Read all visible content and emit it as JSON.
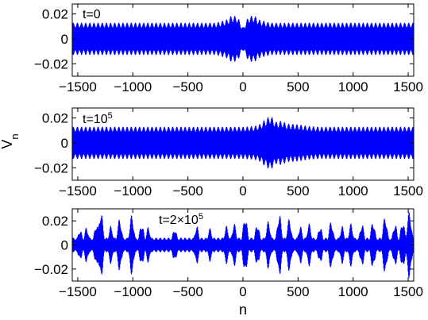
{
  "chart_data": [
    {
      "type": "line",
      "annotation": "t=0",
      "annotation_sup": "",
      "xlim": [
        -1550,
        1550
      ],
      "ylim": [
        -0.03,
        0.028
      ],
      "xticks": [
        "-1500",
        "-1000",
        "-500",
        "0",
        "500",
        "1000",
        "1500"
      ],
      "xtick_values": [
        -1500,
        -1000,
        -500,
        0,
        500,
        1000,
        1500
      ],
      "yticks": [
        "0.02",
        "0",
        "-0.02"
      ],
      "ytick_values": [
        0.02,
        0,
        -0.02
      ],
      "series": [
        {
          "color": "#0000ff",
          "x": [
            -1550,
            -1500,
            -1000,
            -500,
            -250,
            -150,
            -100,
            -50,
            0,
            50,
            100,
            150,
            250,
            500,
            1000,
            1500,
            1550
          ],
          "envelope": [
            0.013,
            0.013,
            0.013,
            0.013,
            0.013,
            0.0155,
            0.019,
            0.018,
            0.009,
            0.018,
            0.019,
            0.0155,
            0.013,
            0.013,
            0.013,
            0.013,
            0.013
          ]
        }
      ]
    },
    {
      "type": "line",
      "annotation": "t=10",
      "annotation_sup": "5",
      "xlim": [
        -1550,
        1550
      ],
      "ylim": [
        -0.03,
        0.028
      ],
      "xticks": [
        "-1500",
        "-1000",
        "-500",
        "0",
        "500",
        "1000",
        "1500"
      ],
      "xtick_values": [
        -1500,
        -1000,
        -500,
        0,
        500,
        1000,
        1500
      ],
      "yticks": [
        "0.02",
        "0",
        "-0.02"
      ],
      "ytick_values": [
        0.02,
        0,
        -0.02
      ],
      "series": [
        {
          "color": "#0000ff",
          "x": [
            -1550,
            -1500,
            -1000,
            -500,
            0,
            100,
            150,
            200,
            250,
            300,
            350,
            400,
            500,
            600,
            700,
            800,
            1000,
            1500,
            1550
          ],
          "envelope": [
            0.013,
            0.013,
            0.013,
            0.013,
            0.013,
            0.0135,
            0.015,
            0.019,
            0.022,
            0.017,
            0.018,
            0.0155,
            0.015,
            0.0135,
            0.013,
            0.013,
            0.013,
            0.013,
            0.013
          ]
        }
      ]
    },
    {
      "type": "line",
      "annotation": "t=2×10",
      "annotation_sup": "5",
      "xlim": [
        -1550,
        1550
      ],
      "ylim": [
        -0.03,
        0.03
      ],
      "xticks": [
        "-1500",
        "-1000",
        "-500",
        "0",
        "500",
        "1000",
        "1500"
      ],
      "xtick_values": [
        -1500,
        -1000,
        -500,
        0,
        500,
        1000,
        1500
      ],
      "yticks": [
        "0.02",
        "0",
        "-0.02"
      ],
      "ytick_values": [
        0.02,
        0,
        -0.02
      ],
      "series": [
        {
          "color": "#0000ff",
          "baseline": 0.006,
          "bursts": [
            {
              "x": -1480,
              "amp": 0.013
            },
            {
              "x": -1420,
              "amp": 0.015
            },
            {
              "x": -1330,
              "amp": 0.018
            },
            {
              "x": -1290,
              "amp": 0.028
            },
            {
              "x": -1200,
              "amp": 0.016
            },
            {
              "x": -1120,
              "amp": 0.022
            },
            {
              "x": -1010,
              "amp": 0.025
            },
            {
              "x": -920,
              "amp": 0.018
            },
            {
              "x": -860,
              "amp": 0.015
            },
            {
              "x": -620,
              "amp": 0.014
            },
            {
              "x": -420,
              "amp": 0.016
            },
            {
              "x": -300,
              "amp": 0.014
            },
            {
              "x": -150,
              "amp": 0.016
            },
            {
              "x": -80,
              "amp": 0.018
            },
            {
              "x": 20,
              "amp": 0.024
            },
            {
              "x": 130,
              "amp": 0.018
            },
            {
              "x": 230,
              "amp": 0.02
            },
            {
              "x": 330,
              "amp": 0.026
            },
            {
              "x": 420,
              "amp": 0.022
            },
            {
              "x": 520,
              "amp": 0.016
            },
            {
              "x": 600,
              "amp": 0.018
            },
            {
              "x": 700,
              "amp": 0.016
            },
            {
              "x": 800,
              "amp": 0.02
            },
            {
              "x": 900,
              "amp": 0.016
            },
            {
              "x": 980,
              "amp": 0.018
            },
            {
              "x": 1080,
              "amp": 0.018
            },
            {
              "x": 1180,
              "amp": 0.02
            },
            {
              "x": 1290,
              "amp": 0.024
            },
            {
              "x": 1380,
              "amp": 0.018
            },
            {
              "x": 1450,
              "amp": 0.02
            },
            {
              "x": 1510,
              "amp": 0.028
            }
          ]
        }
      ]
    }
  ],
  "shared": {
    "xlabel": "n",
    "ylabel": "V",
    "ylabel_sub": "n"
  }
}
